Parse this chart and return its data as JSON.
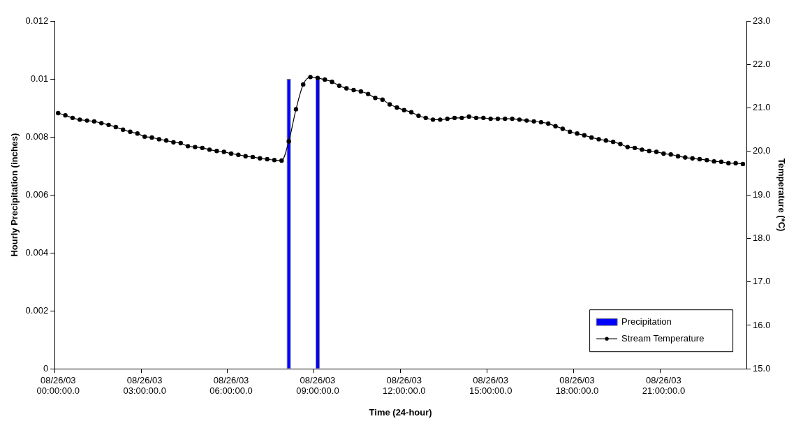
{
  "chart_data": {
    "type": "bar",
    "xlabel": "Time (24-hour)",
    "ylabel": "Hourly Precipitation (inches)",
    "y2label": "Temperature (*C)",
    "categories": [
      "08/26/03 00:00:00.0",
      null,
      null,
      null,
      null,
      null,
      null,
      null,
      null,
      null,
      null,
      null,
      "08/26/03 03:00:00.0",
      null,
      null,
      null,
      null,
      null,
      null,
      null,
      null,
      null,
      null,
      null,
      "08/26/03 06:00:00.0",
      null,
      null,
      null,
      null,
      null,
      null,
      null,
      null,
      null,
      null,
      null,
      "08/26/03 09:00:00.0",
      null,
      null,
      null,
      null,
      null,
      null,
      null,
      null,
      null,
      null,
      null,
      "08/26/03 12:00:00.0",
      null,
      null,
      null,
      null,
      null,
      null,
      null,
      null,
      null,
      null,
      null,
      "08/26/03 15:00:00.0",
      null,
      null,
      null,
      null,
      null,
      null,
      null,
      null,
      null,
      null,
      null,
      "08/26/03 18:00:00.0",
      null,
      null,
      null,
      null,
      null,
      null,
      null,
      null,
      null,
      null,
      null,
      "08/26/03 21:00:00.0",
      null,
      null,
      null,
      null,
      null,
      null,
      null,
      null,
      null,
      null,
      null
    ],
    "series": [
      {
        "name": "Precipitation",
        "color": "#0000ff",
        "values": [
          0,
          0,
          0,
          0,
          0,
          0,
          0,
          0,
          0,
          0,
          0,
          0,
          0,
          0,
          0,
          0,
          0,
          0,
          0,
          0,
          0,
          0,
          0,
          0,
          0,
          0,
          0,
          0,
          0,
          0,
          0,
          0,
          0.01,
          0,
          0,
          0,
          0.01,
          0,
          0,
          0,
          0,
          0,
          0,
          0,
          0,
          0,
          0,
          0,
          0,
          0,
          0,
          0,
          0,
          0,
          0,
          0,
          0,
          0,
          0,
          0,
          0,
          0,
          0,
          0,
          0,
          0,
          0,
          0,
          0,
          0,
          0,
          0,
          0,
          0,
          0,
          0,
          0,
          0,
          0,
          0,
          0,
          0,
          0,
          0,
          0,
          0,
          0,
          0,
          0,
          0,
          0,
          0,
          0,
          0,
          0,
          0
        ]
      },
      {
        "name": "Stream Temperature",
        "type": "line",
        "axis": "y2",
        "color": "#000000",
        "values": [
          20.88,
          20.83,
          20.77,
          20.73,
          20.71,
          20.69,
          20.65,
          20.61,
          20.56,
          20.5,
          20.45,
          20.41,
          20.34,
          20.32,
          20.28,
          20.25,
          20.21,
          20.19,
          20.12,
          20.1,
          20.08,
          20.04,
          20.01,
          19.99,
          19.95,
          19.92,
          19.89,
          19.87,
          19.84,
          19.82,
          19.8,
          19.79,
          20.23,
          20.97,
          21.54,
          21.71,
          21.69,
          21.65,
          21.6,
          21.51,
          21.45,
          21.41,
          21.38,
          21.32,
          21.23,
          21.19,
          21.08,
          21.01,
          20.95,
          20.9,
          20.82,
          20.77,
          20.73,
          20.73,
          20.75,
          20.77,
          20.77,
          20.8,
          20.77,
          20.77,
          20.75,
          20.75,
          20.75,
          20.75,
          20.73,
          20.71,
          20.69,
          20.67,
          20.64,
          20.58,
          20.52,
          20.45,
          20.41,
          20.37,
          20.32,
          20.28,
          20.25,
          20.22,
          20.17,
          20.1,
          20.08,
          20.04,
          20.01,
          19.99,
          19.95,
          19.93,
          19.89,
          19.86,
          19.84,
          19.82,
          19.8,
          19.77,
          19.76,
          19.73,
          19.73,
          19.71
        ]
      }
    ],
    "ylim": [
      0,
      0.012
    ],
    "yticks": [
      0,
      0.002,
      0.004,
      0.006,
      0.008,
      0.01,
      0.012
    ],
    "y2lim": [
      15,
      23
    ],
    "y2ticks": [
      {
        "value": 15,
        "label": "15.0"
      },
      {
        "value": 16,
        "label": "16.0"
      },
      {
        "value": 17,
        "label": "17.0"
      },
      {
        "value": 18,
        "label": "18.0"
      },
      {
        "value": 19,
        "label": "19.0"
      },
      {
        "value": 20,
        "label": "20.0"
      },
      {
        "value": 21,
        "label": "21.0"
      },
      {
        "value": 22,
        "label": "22.0"
      },
      {
        "value": 23,
        "label": "23.0"
      }
    ],
    "grid": false,
    "legend": "bottom right",
    "marker": "circle",
    "line_style": "solid"
  }
}
